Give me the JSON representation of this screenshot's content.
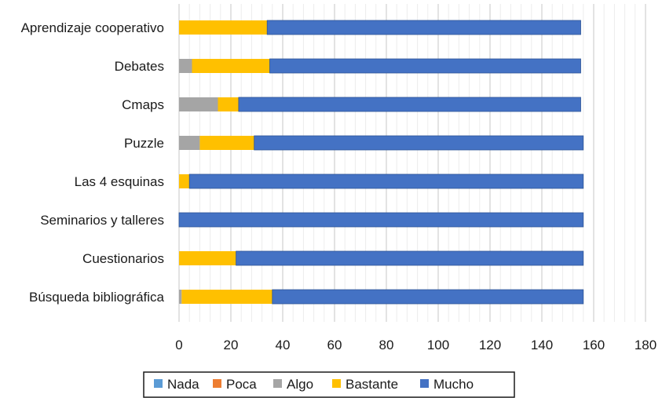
{
  "chart_data": {
    "type": "bar",
    "orientation": "horizontal",
    "stacked": true,
    "categories": [
      "Aprendizaje cooperativo",
      "Debates",
      "Cmaps",
      "Puzzle",
      "Las 4 esquinas",
      "Seminarios y talleres",
      "Cuestionarios",
      "Búsqueda bibliográfica"
    ],
    "series": [
      {
        "name": "Nada",
        "color": "#5b9bd5",
        "values": [
          0,
          0,
          0,
          0,
          0,
          0,
          0,
          0
        ]
      },
      {
        "name": "Poca",
        "color": "#ed7d31",
        "values": [
          0,
          0,
          0,
          0,
          0,
          0,
          0,
          0
        ]
      },
      {
        "name": "Algo",
        "color": "#a5a5a5",
        "values": [
          0,
          5,
          15,
          8,
          0,
          0,
          0,
          1
        ]
      },
      {
        "name": "Bastante",
        "color": "#ffc000",
        "values": [
          34,
          30,
          8,
          21,
          4,
          0,
          22,
          35
        ]
      },
      {
        "name": "Mucho",
        "color": "#4472c4",
        "values": [
          121,
          120,
          132,
          127,
          152,
          156,
          134,
          120
        ]
      }
    ],
    "x_ticks": [
      "0",
      "20",
      "40",
      "60",
      "80",
      "100",
      "120",
      "140",
      "160",
      "180"
    ],
    "xlim": [
      0,
      180
    ],
    "grid": "vertical",
    "legend_position": "bottom",
    "title": "",
    "xlabel": "",
    "ylabel": ""
  }
}
